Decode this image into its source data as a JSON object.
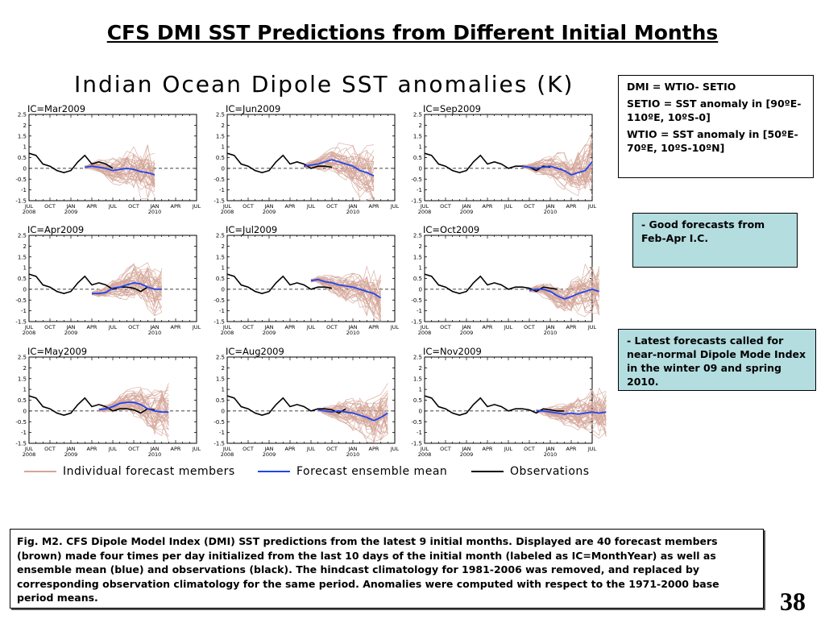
{
  "slide": {
    "title": "CFS DMI SST Predictions from Different Initial Months",
    "figure_title": "Indian Ocean Dipole SST anomalies (K)",
    "page_number": "38"
  },
  "definitions": {
    "line1": "DMI = WTIO- SETIO",
    "line2": "SETIO = SST anomaly in [90ºE-110ºE, 10ºS-0]",
    "line3": "WTIO = SST anomaly in [50ºE-70ºE, 10ºS-10ºN]"
  },
  "notes": {
    "good": "- Good forecasts from Feb-Apr I.C.",
    "latest": "- Latest forecasts called for near-normal Dipole Mode Index in the winter 09 and spring 2010."
  },
  "caption": "Fig. M2. CFS Dipole Model Index (DMI) SST predictions from the latest 9 initial months. Displayed are 40 forecast members (brown) made four times per day initialized from the last 10 days of the initial month (labeled as IC=MonthYear) as well as ensemble mean (blue) and observations (black). The hindcast climatology for 1981-2006 was removed, and replaced by corresponding observation climatology for the same period. Anomalies were computed with respect to the 1971-2000 base period means.",
  "legend": {
    "members": "Individual forecast members",
    "mean": "Forecast ensemble mean",
    "obs": "Observations"
  },
  "colors": {
    "members": "#d4a596",
    "mean": "#2244ee",
    "obs": "#000000",
    "zero_line": "#000000",
    "good_box": "#b4dde0"
  },
  "chart_data": [
    {
      "type": "line",
      "title": "IC=Mar2009",
      "ylim": [
        -1.5,
        2.5
      ],
      "yticks": [
        "2.5",
        "2",
        "1.5",
        "1",
        "0.5",
        "0",
        "-0.5",
        "-1",
        "-1.5"
      ],
      "xticks": [
        "JUL",
        "OCT",
        "JAN",
        "APR",
        "JUL",
        "OCT",
        "JAN",
        "APR",
        "JUL"
      ],
      "year_labels": [
        "2008",
        "2009",
        "2010"
      ],
      "observations": {
        "month_index": [
          0,
          1,
          2,
          3,
          4,
          5,
          6,
          7,
          8,
          9,
          10,
          11,
          12
        ],
        "values": [
          0.7,
          0.6,
          0.2,
          0.1,
          -0.1,
          -0.2,
          -0.1,
          0.3,
          0.6,
          0.2,
          0.3,
          0.2,
          0.0
        ]
      },
      "ensemble_mean": {
        "month_index": [
          8,
          9,
          10,
          11,
          12,
          13,
          14,
          15,
          16,
          17,
          18
        ],
        "values": [
          0.05,
          0.1,
          0.05,
          0.0,
          -0.1,
          -0.05,
          0.0,
          -0.05,
          -0.15,
          -0.2,
          -0.3
        ]
      }
    },
    {
      "type": "line",
      "title": "IC=Jun2009",
      "ylim": [
        -1.5,
        2.5
      ],
      "yticks": [
        "2.5",
        "2",
        "1.5",
        "1",
        "0.5",
        "0",
        "-0.5",
        "-1",
        "-1.5"
      ],
      "xticks": [
        "JUL",
        "OCT",
        "JAN",
        "APR",
        "JUL",
        "OCT",
        "JAN",
        "APR",
        "JUL"
      ],
      "year_labels": [
        "2008",
        "2009",
        "2010"
      ],
      "observations": {
        "month_index": [
          0,
          1,
          2,
          3,
          4,
          5,
          6,
          7,
          8,
          9,
          10,
          11,
          12,
          13,
          14,
          15
        ],
        "values": [
          0.7,
          0.6,
          0.2,
          0.1,
          -0.1,
          -0.2,
          -0.1,
          0.3,
          0.6,
          0.2,
          0.3,
          0.2,
          0.0,
          0.1,
          0.1,
          0.05
        ]
      },
      "ensemble_mean": {
        "month_index": [
          11,
          12,
          13,
          14,
          15,
          16,
          17,
          18,
          19,
          20,
          21
        ],
        "values": [
          0.1,
          0.15,
          0.2,
          0.3,
          0.4,
          0.3,
          0.2,
          0.1,
          -0.1,
          -0.2,
          -0.35
        ]
      }
    },
    {
      "type": "line",
      "title": "IC=Sep2009",
      "ylim": [
        -1.5,
        2.5
      ],
      "yticks": [
        "2.5",
        "2",
        "1.5",
        "1",
        "0.5",
        "0",
        "-0.5",
        "-1",
        "-1.5"
      ],
      "xticks": [
        "JUL",
        "OCT",
        "JAN",
        "APR",
        "JUL",
        "OCT",
        "JAN",
        "APR",
        "JUL"
      ],
      "year_labels": [
        "2008",
        "2009",
        "2010"
      ],
      "observations": {
        "month_index": [
          0,
          1,
          2,
          3,
          4,
          5,
          6,
          7,
          8,
          9,
          10,
          11,
          12,
          13,
          14,
          15,
          16,
          17,
          18
        ],
        "values": [
          0.7,
          0.6,
          0.2,
          0.1,
          -0.1,
          -0.2,
          -0.1,
          0.3,
          0.6,
          0.2,
          0.3,
          0.2,
          0.0,
          0.1,
          0.1,
          0.05,
          -0.1,
          0.1,
          0.05
        ]
      },
      "ensemble_mean": {
        "month_index": [
          14,
          15,
          16,
          17,
          18,
          19,
          20,
          21,
          22,
          23,
          24
        ],
        "values": [
          0.1,
          0.05,
          0.0,
          0.05,
          0.1,
          0.0,
          -0.1,
          -0.3,
          -0.2,
          -0.1,
          0.3
        ]
      }
    },
    {
      "type": "line",
      "title": "IC=Apr2009",
      "ylim": [
        -1.5,
        2.5
      ],
      "yticks": [
        "2.5",
        "2",
        "1.5",
        "1",
        "0.5",
        "0",
        "-0.5",
        "-1",
        "-1.5"
      ],
      "xticks": [
        "JUL",
        "OCT",
        "JAN",
        "APR",
        "JUL",
        "OCT",
        "JAN",
        "APR",
        "JUL"
      ],
      "year_labels": [
        "2008",
        "2009",
        "2010"
      ],
      "observations": {
        "month_index": [
          0,
          1,
          2,
          3,
          4,
          5,
          6,
          7,
          8,
          9,
          10,
          11,
          12,
          13,
          14,
          15,
          16,
          17
        ],
        "values": [
          0.7,
          0.6,
          0.2,
          0.1,
          -0.1,
          -0.2,
          -0.1,
          0.3,
          0.6,
          0.2,
          0.3,
          0.2,
          0.0,
          0.1,
          0.1,
          0.05,
          -0.1,
          0.1
        ]
      },
      "ensemble_mean": {
        "month_index": [
          9,
          10,
          11,
          12,
          13,
          14,
          15,
          16,
          17,
          18,
          19
        ],
        "values": [
          -0.2,
          -0.2,
          -0.15,
          0.05,
          0.1,
          0.2,
          0.3,
          0.25,
          0.1,
          0.0,
          0.0
        ]
      }
    },
    {
      "type": "line",
      "title": "IC=Jul2009",
      "ylim": [
        -1.5,
        2.5
      ],
      "yticks": [
        "2.5",
        "2",
        "1.5",
        "1",
        "0.5",
        "0",
        "-0.5",
        "-1",
        "-1.5"
      ],
      "xticks": [
        "JUL",
        "OCT",
        "JAN",
        "APR",
        "JUL",
        "OCT",
        "JAN",
        "APR",
        "JUL"
      ],
      "year_labels": [
        "2008",
        "2009",
        "2010"
      ],
      "observations": {
        "month_index": [
          0,
          1,
          2,
          3,
          4,
          5,
          6,
          7,
          8,
          9,
          10,
          11,
          12,
          13,
          14,
          15
        ],
        "values": [
          0.7,
          0.6,
          0.2,
          0.1,
          -0.1,
          -0.2,
          -0.1,
          0.3,
          0.6,
          0.2,
          0.3,
          0.2,
          0.0,
          0.1,
          0.1,
          0.05
        ]
      },
      "ensemble_mean": {
        "month_index": [
          12,
          13,
          14,
          15,
          16,
          17,
          18,
          19,
          20,
          21,
          22
        ],
        "values": [
          0.4,
          0.45,
          0.35,
          0.3,
          0.2,
          0.15,
          0.1,
          0.0,
          -0.1,
          -0.2,
          -0.4
        ]
      }
    },
    {
      "type": "line",
      "title": "IC=Oct2009",
      "ylim": [
        -1.5,
        2.5
      ],
      "yticks": [
        "2.5",
        "2",
        "1.5",
        "1",
        "0.5",
        "0",
        "-0.5",
        "-1",
        "-1.5"
      ],
      "xticks": [
        "JUL",
        "OCT",
        "JAN",
        "APR",
        "JUL",
        "OCT",
        "JAN",
        "APR",
        "JUL"
      ],
      "year_labels": [
        "2008",
        "2009",
        "2010"
      ],
      "observations": {
        "month_index": [
          0,
          1,
          2,
          3,
          4,
          5,
          6,
          7,
          8,
          9,
          10,
          11,
          12,
          13,
          14,
          15,
          16,
          17,
          18,
          19
        ],
        "values": [
          0.7,
          0.6,
          0.2,
          0.1,
          -0.1,
          -0.2,
          -0.1,
          0.3,
          0.6,
          0.2,
          0.3,
          0.2,
          0.0,
          0.1,
          0.1,
          0.05,
          -0.1,
          0.1,
          0.05,
          0.0
        ]
      },
      "ensemble_mean": {
        "month_index": [
          15,
          16,
          17,
          18,
          19,
          20,
          21,
          22,
          23,
          24,
          25
        ],
        "values": [
          -0.05,
          0.0,
          0.0,
          -0.1,
          -0.3,
          -0.45,
          -0.35,
          -0.2,
          -0.1,
          0.0,
          -0.1
        ]
      }
    },
    {
      "type": "line",
      "title": "IC=May2009",
      "ylim": [
        -1.5,
        2.5
      ],
      "yticks": [
        "2.5",
        "2",
        "1.5",
        "1",
        "0.5",
        "0",
        "-0.5",
        "-1",
        "-1.5"
      ],
      "xticks": [
        "JUL",
        "OCT",
        "JAN",
        "APR",
        "JUL",
        "OCT",
        "JAN",
        "APR",
        "JUL"
      ],
      "year_labels": [
        "2008",
        "2009",
        "2010"
      ],
      "observations": {
        "month_index": [
          0,
          1,
          2,
          3,
          4,
          5,
          6,
          7,
          8,
          9,
          10,
          11,
          12,
          13,
          14,
          15,
          16,
          17,
          18
        ],
        "values": [
          0.7,
          0.6,
          0.2,
          0.1,
          -0.1,
          -0.2,
          -0.1,
          0.3,
          0.6,
          0.2,
          0.3,
          0.2,
          0.0,
          0.1,
          0.1,
          0.05,
          -0.1,
          0.1,
          0.05
        ]
      },
      "ensemble_mean": {
        "month_index": [
          10,
          11,
          12,
          13,
          14,
          15,
          16,
          17,
          18,
          19,
          20
        ],
        "values": [
          0.05,
          0.1,
          0.2,
          0.35,
          0.4,
          0.4,
          0.3,
          0.1,
          0.0,
          -0.05,
          -0.05
        ]
      }
    },
    {
      "type": "line",
      "title": "IC=Aug2009",
      "ylim": [
        -1.5,
        2.5
      ],
      "yticks": [
        "2.5",
        "2",
        "1.5",
        "1",
        "0.5",
        "0",
        "-0.5",
        "-1",
        "-1.5"
      ],
      "xticks": [
        "JUL",
        "OCT",
        "JAN",
        "APR",
        "JUL",
        "OCT",
        "JAN",
        "APR",
        "JUL"
      ],
      "year_labels": [
        "2008",
        "2009",
        "2010"
      ],
      "observations": {
        "month_index": [
          0,
          1,
          2,
          3,
          4,
          5,
          6,
          7,
          8,
          9,
          10,
          11,
          12,
          13,
          14,
          15,
          16,
          17
        ],
        "values": [
          0.7,
          0.6,
          0.2,
          0.1,
          -0.1,
          -0.2,
          -0.1,
          0.3,
          0.6,
          0.2,
          0.3,
          0.2,
          0.0,
          0.1,
          0.1,
          0.05,
          -0.1,
          0.1
        ]
      },
      "ensemble_mean": {
        "month_index": [
          13,
          14,
          15,
          16,
          17,
          18,
          19,
          20,
          21,
          22,
          23
        ],
        "values": [
          0.05,
          0.0,
          -0.05,
          0.0,
          -0.05,
          -0.1,
          -0.2,
          -0.3,
          -0.45,
          -0.3,
          -0.1
        ]
      }
    },
    {
      "type": "line",
      "title": "IC=Nov2009",
      "ylim": [
        -1.5,
        2.5
      ],
      "yticks": [
        "2.5",
        "2",
        "1.5",
        "1",
        "0.5",
        "0",
        "-0.5",
        "-1",
        "-1.5"
      ],
      "xticks": [
        "JUL",
        "OCT",
        "JAN",
        "APR",
        "JUL",
        "OCT",
        "JAN",
        "APR",
        "JUL"
      ],
      "year_labels": [
        "2008",
        "2009",
        "2010"
      ],
      "observations": {
        "month_index": [
          0,
          1,
          2,
          3,
          4,
          5,
          6,
          7,
          8,
          9,
          10,
          11,
          12,
          13,
          14,
          15,
          16,
          17,
          18,
          19,
          20
        ],
        "values": [
          0.7,
          0.6,
          0.2,
          0.1,
          -0.1,
          -0.2,
          -0.1,
          0.3,
          0.6,
          0.2,
          0.3,
          0.2,
          0.0,
          0.1,
          0.1,
          0.05,
          -0.1,
          0.1,
          0.05,
          0.0,
          0.0
        ]
      },
      "ensemble_mean": {
        "month_index": [
          16,
          17,
          18,
          19,
          20,
          21,
          22,
          23,
          24,
          25,
          26
        ],
        "values": [
          0.0,
          0.0,
          -0.05,
          -0.1,
          -0.15,
          -0.1,
          -0.15,
          -0.1,
          -0.05,
          -0.1,
          -0.05
        ]
      }
    }
  ]
}
